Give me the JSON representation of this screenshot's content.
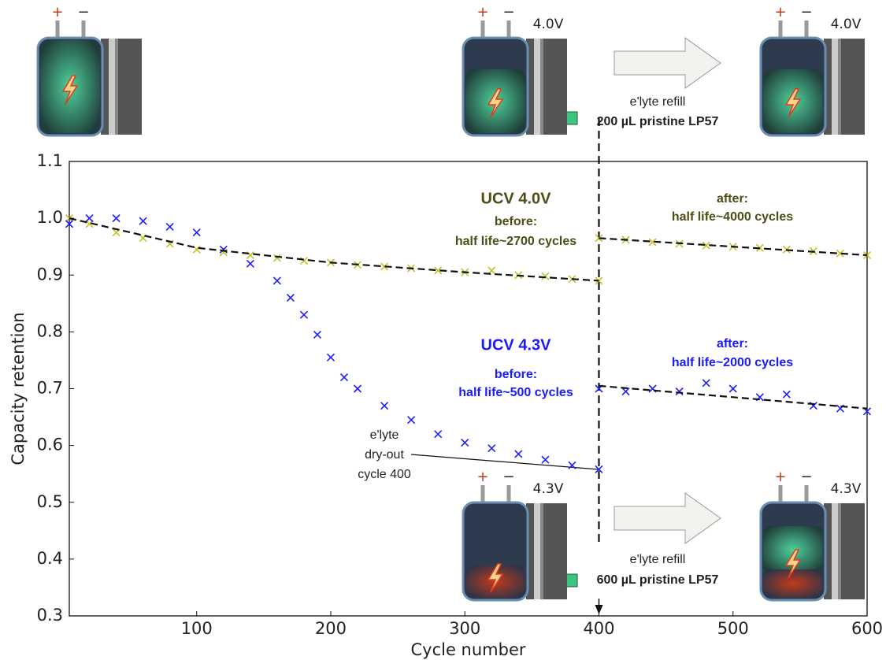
{
  "chart_data": {
    "type": "scatter",
    "xlabel": "Cycle number",
    "ylabel": "Capacity retention",
    "xlim": [
      5,
      600
    ],
    "ylim": [
      0.3,
      1.1
    ],
    "xticks": [
      100,
      200,
      300,
      400,
      500,
      600
    ],
    "yticks": [
      0.3,
      0.4,
      0.5,
      0.6,
      0.7,
      0.8,
      0.9,
      {
        "value": 1,
        "label": "1.0"
      },
      1.1
    ],
    "marker_line": 400,
    "series": [
      {
        "color": "#c3c323",
        "marker": "x",
        "x": [
          5,
          20,
          40,
          60,
          80,
          100,
          120,
          140,
          160,
          180,
          200,
          220,
          240,
          260,
          280,
          300,
          320,
          340,
          360,
          380,
          400,
          400,
          420,
          440,
          460,
          480,
          500,
          520,
          540,
          560,
          580,
          600
        ],
        "values": [
          1.0,
          0.99,
          0.975,
          0.965,
          0.955,
          0.945,
          0.94,
          0.935,
          0.93,
          0.925,
          0.922,
          0.918,
          0.915,
          0.912,
          0.908,
          0.905,
          0.908,
          0.9,
          0.898,
          0.893,
          0.89,
          0.965,
          0.962,
          0.958,
          0.955,
          0.952,
          0.95,
          0.948,
          0.945,
          0.942,
          0.938,
          0.935
        ]
      },
      {
        "color": "#1e1eff",
        "marker": "x",
        "x": [
          5,
          20,
          40,
          60,
          80,
          100,
          120,
          140,
          160,
          170,
          180,
          190,
          200,
          210,
          220,
          240,
          260,
          280,
          300,
          320,
          340,
          360,
          380,
          400,
          400,
          420,
          440,
          460,
          480,
          500,
          520,
          540,
          560,
          580,
          600
        ],
        "values": [
          0.99,
          1.0,
          1.0,
          0.995,
          0.985,
          0.975,
          0.945,
          0.92,
          0.89,
          0.86,
          0.83,
          0.795,
          0.755,
          0.72,
          0.7,
          0.67,
          0.645,
          0.62,
          0.605,
          0.595,
          0.585,
          0.575,
          0.565,
          0.558,
          0.7,
          0.695,
          0.7,
          0.695,
          0.71,
          0.7,
          0.685,
          0.69,
          0.67,
          0.665,
          0.66
        ]
      },
      {
        "color": "#111111",
        "marker": "dashed",
        "x": [
          5,
          100,
          200,
          300,
          400
        ],
        "values": [
          1.0,
          0.948,
          0.922,
          0.905,
          0.89
        ]
      },
      {
        "color": "#111111",
        "marker": "dashed",
        "x": [
          400,
          600
        ],
        "values": [
          0.965,
          0.935
        ]
      },
      {
        "color": "#111111",
        "marker": "dashed",
        "x": [
          400,
          600
        ],
        "values": [
          0.705,
          0.665
        ]
      }
    ],
    "annotations": [
      "UCV 4.0V",
      "before:",
      "half life~2700 cycles",
      "after:",
      "half life~4000 cycles",
      "UCV 4.3V",
      "before:",
      "half life~500 cycles",
      "after:",
      "half life~2000 cycles",
      "e'lyte",
      "dry-out",
      "cycle 400",
      "e'lyte refill",
      "200 µL pristine LP57",
      "e'lyte refill",
      "600 µL pristine LP57"
    ]
  },
  "illustrations": [
    {
      "plus": "+",
      "minus": "−"
    },
    {
      "plus": "+",
      "minus": "−",
      "voltage": "4.0V"
    },
    {
      "plus": "+",
      "minus": "−",
      "voltage": "4.0V"
    },
    {
      "plus": "+",
      "minus": "−",
      "voltage": "4.3V"
    },
    {
      "plus": "+",
      "minus": "−",
      "voltage": "4.3V"
    }
  ]
}
